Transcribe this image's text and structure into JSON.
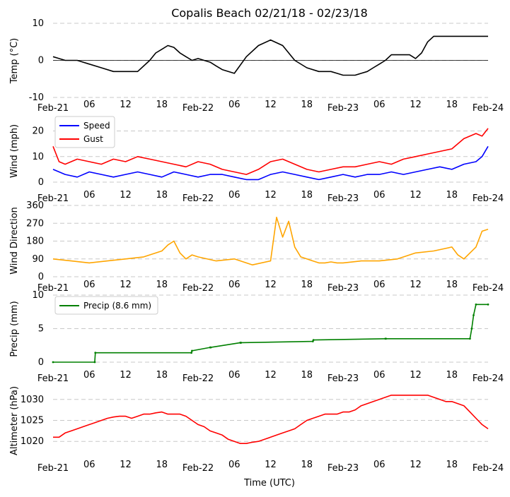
{
  "title": "Copalis Beach 02/21/18 - 02/23/18",
  "xlabel": "Time (UTC)",
  "colors": {
    "temp": "#000000",
    "speed": "#0000ff",
    "gust": "#ff0000",
    "direction": "#ffa500",
    "precip": "#008000",
    "altimeter": "#ff0000",
    "grid": "#c8c8c8"
  },
  "chart_data": [
    {
      "id": "temp",
      "type": "line",
      "ylabel": "Temp (°C)",
      "ylim": [
        -10,
        10
      ],
      "yticks": [
        -10,
        0,
        10
      ],
      "zero_line": true,
      "series": [
        {
          "name": "Temp",
          "color": "#000000",
          "x": [
            0,
            1,
            2,
            4,
            6,
            8,
            10,
            11,
            12,
            14,
            16,
            17,
            18,
            19,
            20,
            21,
            22,
            23,
            24,
            25,
            26,
            27,
            28,
            29,
            30,
            32,
            34,
            36,
            38,
            40,
            42,
            44,
            45,
            46,
            47,
            48,
            49,
            50,
            51,
            52,
            53,
            54,
            55,
            56,
            57,
            58,
            59,
            60,
            61,
            62,
            63,
            64,
            65,
            66,
            67,
            68,
            69,
            70,
            71,
            72
          ],
          "y": [
            1,
            0.5,
            0,
            0,
            -1,
            -2,
            -3,
            -3,
            -3,
            -3,
            0,
            2,
            3,
            4,
            3.5,
            2,
            1,
            0,
            0.5,
            0,
            -0.5,
            -1.5,
            -2.5,
            -3,
            -3.5,
            1,
            4,
            5.5,
            4,
            0,
            -2,
            -3,
            -3,
            -3,
            -3.5,
            -4,
            -4,
            -4,
            -3.5,
            -3,
            -2,
            -1,
            0,
            1.5,
            1.5,
            1.5,
            1.5,
            0.5,
            2,
            5,
            6.5,
            6.5,
            6.5,
            6.5,
            6.5,
            6.5,
            6.5,
            6.5,
            6.5,
            6.5
          ]
        }
      ]
    },
    {
      "id": "wind",
      "type": "line",
      "ylabel": "Wind (mph)",
      "ylim": [
        0,
        24
      ],
      "yticks": [
        0,
        10,
        20
      ],
      "series": [
        {
          "name": "Speed",
          "color": "#0000ff",
          "x": [
            0,
            2,
            4,
            6,
            8,
            10,
            12,
            14,
            16,
            18,
            20,
            22,
            24,
            26,
            28,
            30,
            32,
            34,
            36,
            38,
            40,
            42,
            44,
            46,
            48,
            50,
            52,
            54,
            56,
            58,
            60,
            62,
            64,
            66,
            68,
            70,
            71,
            72
          ],
          "y": [
            5,
            3,
            2,
            4,
            3,
            2,
            3,
            4,
            3,
            2,
            4,
            3,
            2,
            3,
            3,
            2,
            1,
            1,
            3,
            4,
            3,
            2,
            1,
            2,
            3,
            2,
            3,
            3,
            4,
            3,
            4,
            5,
            6,
            5,
            7,
            8,
            10,
            14
          ]
        },
        {
          "name": "Gust",
          "color": "#ff0000",
          "x": [
            0,
            1,
            2,
            4,
            6,
            8,
            10,
            12,
            14,
            16,
            18,
            20,
            22,
            24,
            26,
            28,
            30,
            32,
            34,
            36,
            38,
            40,
            42,
            44,
            46,
            48,
            50,
            52,
            54,
            56,
            58,
            60,
            62,
            64,
            66,
            68,
            70,
            71,
            72
          ],
          "y": [
            14,
            8,
            7,
            9,
            8,
            7,
            9,
            8,
            10,
            9,
            8,
            7,
            6,
            8,
            7,
            5,
            4,
            3,
            5,
            8,
            9,
            7,
            5,
            4,
            5,
            6,
            6,
            7,
            8,
            7,
            9,
            10,
            11,
            12,
            13,
            17,
            19,
            18,
            21
          ]
        }
      ],
      "legend": "upper-left"
    },
    {
      "id": "direction",
      "type": "line",
      "ylabel": "Wind Direction",
      "ylim": [
        0,
        360
      ],
      "yticks": [
        0,
        90,
        180,
        270,
        360
      ],
      "series": [
        {
          "name": "Direction",
          "color": "#ffa500",
          "x": [
            0,
            3,
            6,
            9,
            12,
            15,
            18,
            19,
            20,
            21,
            22,
            23,
            24,
            27,
            30,
            33,
            36,
            37,
            38,
            39,
            40,
            41,
            42,
            43,
            44,
            45,
            46,
            47,
            48,
            51,
            54,
            57,
            60,
            63,
            66,
            67,
            68,
            69,
            70,
            71,
            72
          ],
          "y": [
            90,
            80,
            70,
            80,
            90,
            100,
            130,
            160,
            180,
            120,
            90,
            110,
            100,
            80,
            90,
            60,
            80,
            300,
            200,
            280,
            150,
            100,
            90,
            80,
            70,
            70,
            75,
            70,
            70,
            80,
            80,
            90,
            120,
            130,
            150,
            110,
            90,
            120,
            150,
            230,
            240
          ]
        }
      ]
    },
    {
      "id": "precip",
      "type": "line",
      "ylabel": "Precip (mm)",
      "ylim": [
        0,
        10
      ],
      "yticks": [
        0,
        5,
        10
      ],
      "series": [
        {
          "name": "Precip (8.6 mm)",
          "color": "#008000",
          "x": [
            0,
            6.9,
            7,
            22.9,
            23,
            26,
            26.1,
            31,
            31.1,
            43,
            43.1,
            55,
            55.1,
            69,
            69.3,
            69.6,
            70,
            72
          ],
          "y": [
            0,
            0,
            1.4,
            1.4,
            1.7,
            2.2,
            2.2,
            2.9,
            2.9,
            3.1,
            3.3,
            3.5,
            3.5,
            3.5,
            5,
            7,
            8.6,
            8.6
          ]
        }
      ],
      "legend": "upper-left"
    },
    {
      "id": "altimeter",
      "type": "line",
      "ylabel": "Altimeter (hPa)",
      "ylim": [
        1016,
        1034
      ],
      "yticks": [
        1020,
        1025,
        1030
      ],
      "series": [
        {
          "name": "Altimeter",
          "color": "#ff0000",
          "x": [
            0,
            1,
            2,
            3,
            4,
            5,
            6,
            7,
            8,
            9,
            10,
            11,
            12,
            13,
            14,
            15,
            16,
            17,
            18,
            19,
            20,
            21,
            22,
            23,
            24,
            25,
            26,
            27,
            28,
            29,
            30,
            31,
            32,
            33,
            34,
            35,
            36,
            37,
            38,
            39,
            40,
            41,
            42,
            43,
            44,
            45,
            46,
            47,
            48,
            49,
            50,
            51,
            52,
            53,
            54,
            55,
            56,
            57,
            58,
            59,
            60,
            61,
            62,
            63,
            64,
            65,
            66,
            67,
            68,
            69,
            70,
            71,
            72
          ],
          "y": [
            1021,
            1021,
            1022,
            1022.5,
            1023,
            1023.5,
            1024,
            1024.5,
            1025,
            1025.5,
            1025.8,
            1026,
            1026,
            1025.5,
            1026,
            1026.5,
            1026.5,
            1026.8,
            1027,
            1026.5,
            1026.5,
            1026.5,
            1026,
            1025,
            1024,
            1023.5,
            1022.5,
            1022,
            1021.5,
            1020.5,
            1020,
            1019.5,
            1019.5,
            1019.8,
            1020,
            1020.5,
            1021,
            1021.5,
            1022,
            1022.5,
            1023,
            1024,
            1025,
            1025.5,
            1026,
            1026.5,
            1026.5,
            1026.5,
            1027,
            1027,
            1027.5,
            1028.5,
            1029,
            1029.5,
            1030,
            1030.5,
            1031,
            1031,
            1031,
            1031,
            1031,
            1031,
            1031,
            1030.5,
            1030,
            1029.5,
            1029.5,
            1029,
            1028.5,
            1027,
            1025.5,
            1024,
            1023
          ]
        }
      ]
    }
  ],
  "x_axis": {
    "xlim": [
      0,
      72
    ],
    "ticks": [
      {
        "x": 0,
        "label": "Feb-21",
        "major": true
      },
      {
        "x": 6,
        "label": "06",
        "major": false
      },
      {
        "x": 12,
        "label": "12",
        "major": false
      },
      {
        "x": 18,
        "label": "18",
        "major": false
      },
      {
        "x": 24,
        "label": "Feb-22",
        "major": true
      },
      {
        "x": 30,
        "label": "06",
        "major": false
      },
      {
        "x": 36,
        "label": "12",
        "major": false
      },
      {
        "x": 42,
        "label": "18",
        "major": false
      },
      {
        "x": 48,
        "label": "Feb-23",
        "major": true
      },
      {
        "x": 54,
        "label": "06",
        "major": false
      },
      {
        "x": 60,
        "label": "12",
        "major": false
      },
      {
        "x": 66,
        "label": "18",
        "major": false
      },
      {
        "x": 72,
        "label": "Feb-24",
        "major": true
      }
    ]
  }
}
